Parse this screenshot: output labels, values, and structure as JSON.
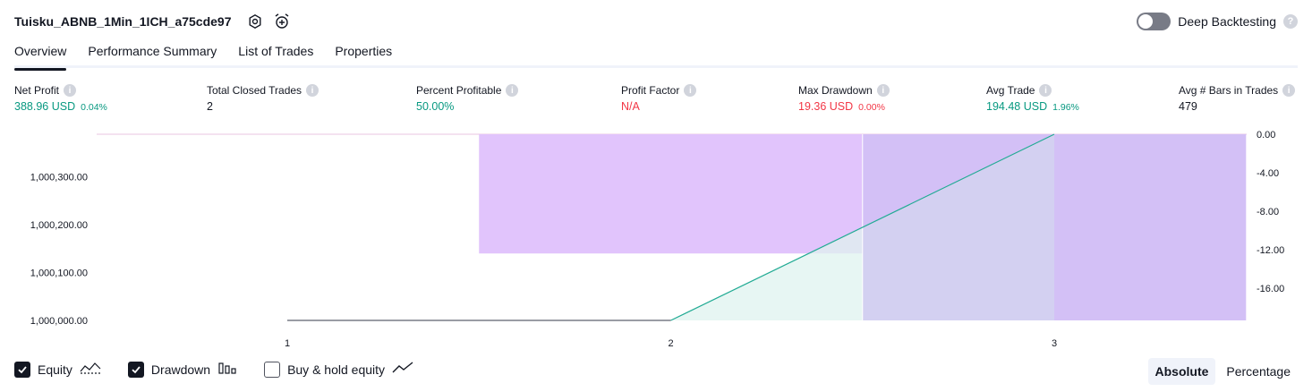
{
  "header": {
    "title": "Tuisku_ABNB_1Min_1ICH_a75cde97",
    "icons": [
      "settings-icon",
      "alarm-add-icon"
    ]
  },
  "deep_backtesting": {
    "label": "Deep Backtesting",
    "enabled": false,
    "help": "?"
  },
  "tabs": [
    {
      "label": "Overview",
      "active": true
    },
    {
      "label": "Performance Summary",
      "active": false
    },
    {
      "label": "List of Trades",
      "active": false
    },
    {
      "label": "Properties",
      "active": false
    }
  ],
  "metrics": [
    {
      "label": "Net Profit",
      "value": "388.96 USD",
      "pct": "0.04%",
      "color": "green"
    },
    {
      "label": "Total Closed Trades",
      "value": "2",
      "pct": "",
      "color": "dark"
    },
    {
      "label": "Percent Profitable",
      "value": "50.00%",
      "pct": "",
      "color": "green"
    },
    {
      "label": "Profit Factor",
      "value": "N/A",
      "pct": "",
      "color": "red"
    },
    {
      "label": "Max Drawdown",
      "value": "19.36 USD",
      "pct": "0.00%",
      "color": "red"
    },
    {
      "label": "Avg Trade",
      "value": "194.48 USD",
      "pct": "1.96%",
      "color": "green"
    },
    {
      "label": "Avg # Bars in Trades",
      "value": "479",
      "pct": "",
      "color": "dark"
    }
  ],
  "chart_data": {
    "type": "area",
    "x_ticks": [
      "1",
      "2",
      "3"
    ],
    "y_left_ticks": [
      "1,000,000.00",
      "1,000,100.00",
      "1,000,200.00",
      "1,000,300.00"
    ],
    "y_right_ticks": [
      "0.00",
      "-4.00",
      "-8.00",
      "-12.00",
      "-16.00"
    ],
    "equity": {
      "points": [
        {
          "x": 1,
          "y": 1000000
        },
        {
          "x": 2,
          "y": 1000000
        },
        {
          "x": 3,
          "y": 1000388.96
        }
      ],
      "line_color": "#22ab94",
      "fill_color": "#dff3ef"
    },
    "buy_hold": {
      "line_color": "#787b86"
    },
    "drawdown": {
      "color": "#e1c4fc",
      "bars": [
        {
          "x_from": 1.5,
          "x_to": 2.5,
          "value": -12.4
        },
        {
          "x_from": 2.5,
          "x_to": 3.5,
          "value": -19.36
        }
      ]
    },
    "left_range": [
      1000000,
      1000388.96
    ],
    "right_range": [
      -19.36,
      0
    ]
  },
  "legend": [
    {
      "label": "Equity",
      "checked": true,
      "icon": "equity-line-icon"
    },
    {
      "label": "Drawdown",
      "checked": true,
      "icon": "drawdown-bars-icon"
    },
    {
      "label": "Buy & hold equity",
      "checked": false,
      "icon": "buy-hold-line-icon"
    }
  ],
  "mode": [
    {
      "label": "Absolute",
      "active": true
    },
    {
      "label": "Percentage",
      "active": false
    }
  ]
}
